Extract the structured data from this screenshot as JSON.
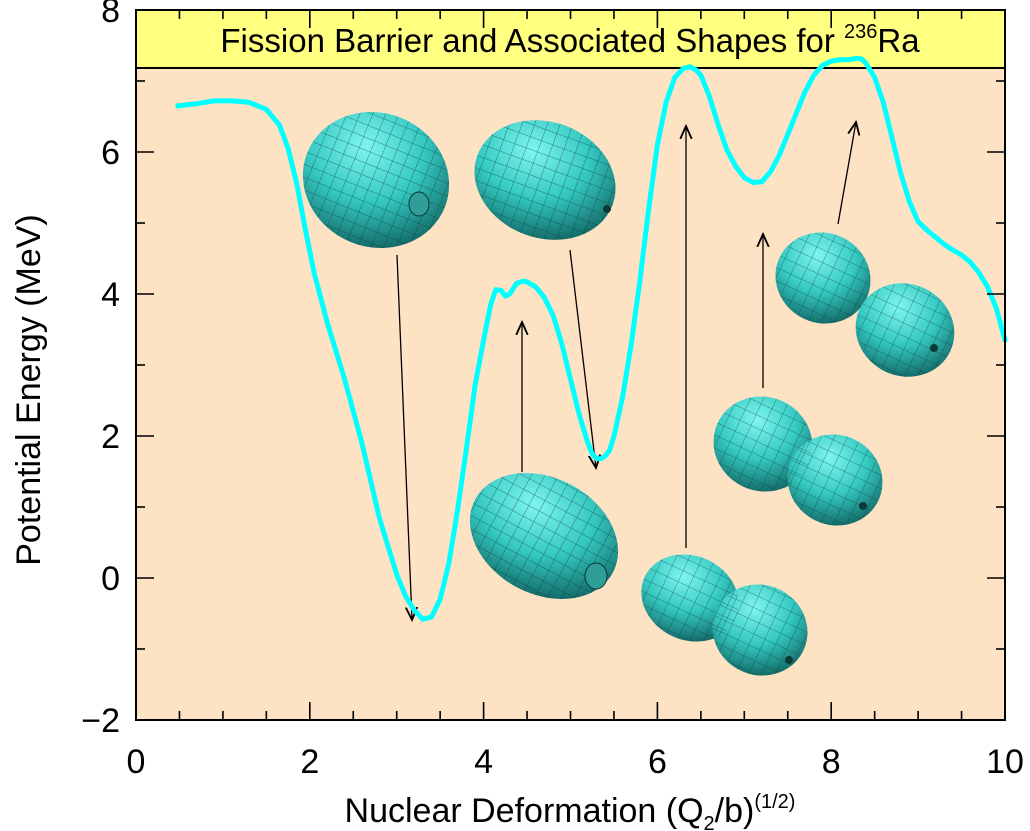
{
  "chart_data": {
    "type": "line",
    "title_main": "Fission Barrier and Associated Shapes for ",
    "title_isotope_mass": "236",
    "title_element": "Ra",
    "xlabel_main": "Nuclear Deformation (Q",
    "xlabel_sub": "2",
    "xlabel_mid": "/b)",
    "xlabel_sup": "(1/2)",
    "ylabel": "Potential Energy (MeV)",
    "xlim": [
      0,
      10
    ],
    "ylim": [
      -2,
      8
    ],
    "x_ticks": [
      0,
      2,
      4,
      6,
      8,
      10
    ],
    "x_tick_labels": [
      "0",
      "2",
      "4",
      "6",
      "8",
      "10"
    ],
    "y_ticks": [
      -2,
      0,
      2,
      4,
      6,
      8
    ],
    "y_tick_labels": [
      "−2",
      "0",
      "2",
      "4",
      "6",
      "8"
    ],
    "grid": false,
    "plot_background": "#fde2c4",
    "title_background": "#ffff80",
    "series": [
      {
        "color": "#00ffff",
        "x": [
          0.48,
          0.7,
          0.9,
          1.1,
          1.3,
          1.5,
          1.65,
          1.75,
          1.85,
          1.95,
          2.05,
          2.2,
          2.4,
          2.6,
          2.8,
          3.0,
          3.1,
          3.2,
          3.3,
          3.4,
          3.5,
          3.6,
          3.7,
          3.8,
          3.9,
          4.0,
          4.08,
          4.14,
          4.2,
          4.25,
          4.3,
          4.38,
          4.45,
          4.5,
          4.6,
          4.7,
          4.8,
          4.9,
          5.0,
          5.1,
          5.2,
          5.25,
          5.3,
          5.35,
          5.4,
          5.45,
          5.5,
          5.6,
          5.7,
          5.8,
          5.9,
          6.0,
          6.1,
          6.2,
          6.3,
          6.38,
          6.45,
          6.5,
          6.6,
          6.7,
          6.8,
          6.9,
          7.0,
          7.1,
          7.2,
          7.3,
          7.4,
          7.5,
          7.6,
          7.7,
          7.8,
          7.9,
          8.0,
          8.1,
          8.2,
          8.3,
          8.35,
          8.4,
          8.5,
          8.6,
          8.7,
          8.8,
          8.9,
          9.0,
          9.1,
          9.2,
          9.3,
          9.4,
          9.5,
          9.6,
          9.7,
          9.8,
          9.9,
          10.0
        ],
        "y": [
          6.65,
          6.68,
          6.72,
          6.72,
          6.7,
          6.6,
          6.38,
          6.05,
          5.55,
          4.9,
          4.3,
          3.6,
          2.8,
          1.9,
          0.85,
          0.05,
          -0.25,
          -0.45,
          -0.58,
          -0.55,
          -0.3,
          0.2,
          0.95,
          1.8,
          2.7,
          3.35,
          3.85,
          4.06,
          4.05,
          3.97,
          4.0,
          4.15,
          4.18,
          4.17,
          4.1,
          3.95,
          3.7,
          3.3,
          2.8,
          2.3,
          1.9,
          1.75,
          1.68,
          1.68,
          1.72,
          1.8,
          2.0,
          2.55,
          3.3,
          4.2,
          5.2,
          6.1,
          6.7,
          7.05,
          7.18,
          7.2,
          7.15,
          7.08,
          6.78,
          6.38,
          6.03,
          5.8,
          5.64,
          5.57,
          5.58,
          5.72,
          5.95,
          6.25,
          6.55,
          6.85,
          7.08,
          7.22,
          7.28,
          7.3,
          7.3,
          7.32,
          7.31,
          7.25,
          7.05,
          6.7,
          6.2,
          5.7,
          5.3,
          5.02,
          4.9,
          4.8,
          4.7,
          4.62,
          4.55,
          4.45,
          4.3,
          4.1,
          3.8,
          3.35
        ]
      }
    ]
  }
}
